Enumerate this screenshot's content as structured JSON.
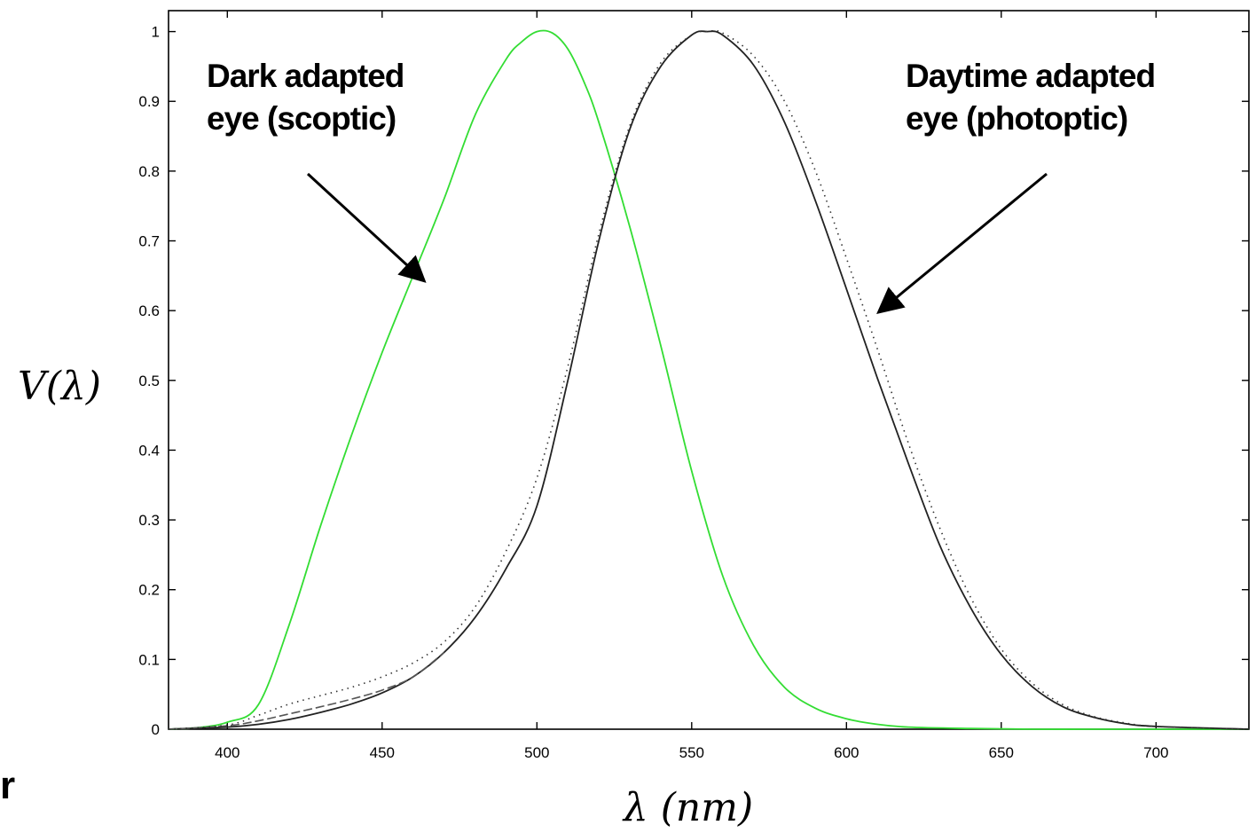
{
  "chart_data": {
    "type": "line",
    "xlabel": "λ (nm)",
    "ylabel": "V(λ)",
    "xlim": [
      381,
      730
    ],
    "ylim": [
      0,
      1.03
    ],
    "xticks": [
      400,
      450,
      500,
      550,
      600,
      650,
      700
    ],
    "yticks": [
      0,
      0.1,
      0.2,
      0.3,
      0.4,
      0.5,
      0.6,
      0.7,
      0.8,
      0.9,
      1
    ],
    "ytick_labels": [
      "0",
      "0.1",
      "0.2",
      "0.3",
      "0.4",
      "0.5",
      "0.6",
      "0.7",
      "0.8",
      "0.9",
      "1"
    ],
    "grid": false,
    "series": [
      {
        "color": "#33dd33",
        "style": "solid",
        "x": [
          381,
          390,
          400,
          410,
          420,
          430,
          440,
          450,
          460,
          470,
          480,
          490,
          495,
          500,
          505,
          510,
          515,
          520,
          530,
          540,
          550,
          560,
          570,
          580,
          590,
          600,
          610,
          620,
          640,
          660,
          680,
          700,
          730
        ],
        "y": [
          0.0,
          0.002,
          0.01,
          0.035,
          0.15,
          0.29,
          0.42,
          0.54,
          0.65,
          0.76,
          0.88,
          0.96,
          0.985,
          1.0,
          0.998,
          0.975,
          0.93,
          0.87,
          0.72,
          0.55,
          0.37,
          0.22,
          0.12,
          0.06,
          0.03,
          0.015,
          0.007,
          0.003,
          0.001,
          0.0,
          0.0,
          0.0,
          0.0
        ]
      },
      {
        "color": "#222222",
        "style": "solid",
        "x": [
          381,
          400,
          410,
          420,
          430,
          440,
          450,
          460,
          470,
          480,
          490,
          500,
          510,
          520,
          530,
          540,
          550,
          555,
          560,
          570,
          580,
          590,
          600,
          610,
          620,
          630,
          640,
          650,
          660,
          670,
          680,
          690,
          700,
          730
        ],
        "y": [
          0.0,
          0.003,
          0.007,
          0.014,
          0.024,
          0.036,
          0.052,
          0.075,
          0.11,
          0.16,
          0.23,
          0.32,
          0.5,
          0.7,
          0.86,
          0.95,
          0.995,
          1.0,
          0.995,
          0.952,
          0.87,
          0.757,
          0.631,
          0.503,
          0.381,
          0.265,
          0.175,
          0.107,
          0.061,
          0.032,
          0.017,
          0.008,
          0.004,
          0.0
        ]
      },
      {
        "color": "#555555",
        "style": "dashed",
        "x": [
          381,
          400,
          410,
          420,
          430,
          440,
          450,
          460,
          470
        ],
        "y": [
          0.0,
          0.005,
          0.012,
          0.022,
          0.032,
          0.043,
          0.056,
          0.075,
          0.11
        ]
      },
      {
        "color": "#333333",
        "style": "dotted",
        "x": [
          381,
          400,
          410,
          420,
          430,
          440,
          450,
          460,
          470,
          480,
          490,
          500,
          510,
          520,
          530,
          540,
          550,
          555,
          560,
          570,
          580,
          590,
          600,
          610,
          620,
          630,
          640,
          650,
          660,
          670,
          680,
          690,
          700,
          730
        ],
        "y": [
          0.0,
          0.006,
          0.02,
          0.036,
          0.048,
          0.06,
          0.075,
          0.095,
          0.125,
          0.175,
          0.255,
          0.36,
          0.52,
          0.71,
          0.865,
          0.955,
          0.995,
          1.0,
          0.998,
          0.965,
          0.9,
          0.8,
          0.675,
          0.545,
          0.41,
          0.29,
          0.19,
          0.115,
          0.066,
          0.035,
          0.018,
          0.009,
          0.004,
          0.0
        ]
      }
    ],
    "annotations": [
      {
        "lines": [
          "Dark adapted",
          "eye (scoptic)"
        ],
        "arrow_to": [
          463,
          0.645
        ]
      },
      {
        "lines": [
          "Daytime adapted",
          "eye (photoptic)"
        ],
        "arrow_to": [
          611,
          0.6
        ]
      }
    ],
    "stray_text": "r"
  }
}
